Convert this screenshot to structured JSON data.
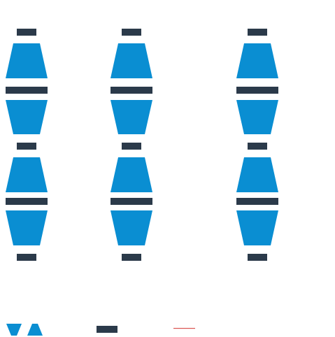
{
  "colors": {
    "background": "#ffffff",
    "shape_fill": "#0a8ed2",
    "bar_fill": "#2b3a4a",
    "line_accent": "#d9534f"
  },
  "icons": {
    "grid_item": "hourglass-icon",
    "legend_shape": "funnel-pair-icon",
    "legend_bar": "dark-bar-icon",
    "legend_line": "red-line-icon"
  },
  "grid": {
    "rows": 2,
    "columns": 3
  }
}
